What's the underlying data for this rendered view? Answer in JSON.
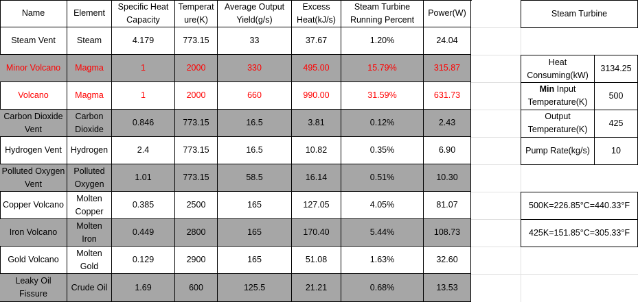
{
  "table": {
    "header": [
      "Name",
      "Element",
      "Specific Heat Capacity",
      "Temperature(K)",
      "Average Output Yield(g/s)",
      "Excess Heat(kJ/s)",
      "Steam Turbine Running Percent",
      "Power(W)"
    ],
    "rows": [
      [
        "Steam Vent",
        "Steam",
        "4.179",
        "773.15",
        "33",
        "37.67",
        "1.20%",
        "24.04"
      ],
      [
        "Minor Volcano",
        "Magma",
        "1",
        "2000",
        "330",
        "495.00",
        "15.79%",
        "315.87"
      ],
      [
        "Volcano",
        "Magma",
        "1",
        "2000",
        "660",
        "990.00",
        "31.59%",
        "631.73"
      ],
      [
        "Carbon Dioxide Vent",
        "Carbon Dioxide",
        "0.846",
        "773.15",
        "16.5",
        "3.81",
        "0.12%",
        "2.43"
      ],
      [
        "Hydrogen Vent",
        "Hydrogen",
        "2.4",
        "773.15",
        "16.5",
        "10.82",
        "0.35%",
        "6.90"
      ],
      [
        "Polluted Oxygen Vent",
        "Polluted Oxygen",
        "1.01",
        "773.15",
        "58.5",
        "16.14",
        "0.51%",
        "10.30"
      ],
      [
        "Copper Volcano",
        "Molten Copper",
        "0.385",
        "2500",
        "165",
        "127.05",
        "4.05%",
        "81.07"
      ],
      [
        "Iron Volcano",
        "Molten Iron",
        "0.449",
        "2800",
        "165",
        "170.40",
        "5.44%",
        "108.73"
      ],
      [
        "Gold Volcano",
        "Molten Gold",
        "0.129",
        "2900",
        "165",
        "51.08",
        "1.63%",
        "32.60"
      ],
      [
        "Leaky Oil Fissure",
        "Crude Oil",
        "1.69",
        "600",
        "125.5",
        "21.21",
        "0.68%",
        "13.53"
      ]
    ],
    "highlighted_rows": [
      1,
      3,
      5,
      7,
      9
    ],
    "highlight_color": "#a6a6a6",
    "red_rows": [
      1,
      2
    ],
    "red_color": "#ff0000"
  },
  "turbine": {
    "title": "Steam Turbine",
    "params": [
      {
        "label": "Heat Consuming(kW)",
        "value": "3134.25"
      },
      {
        "label_bold": "Min",
        "label": "Input Temperature(K)",
        "value": "500"
      },
      {
        "label": "Output Temperature(K)",
        "value": "425"
      },
      {
        "label": "Pump Rate(kg/s)",
        "value": "10"
      }
    ],
    "conversions": [
      "500K=226.85°C=440.33°F",
      "425K=151.85°C=305.33°F"
    ]
  }
}
